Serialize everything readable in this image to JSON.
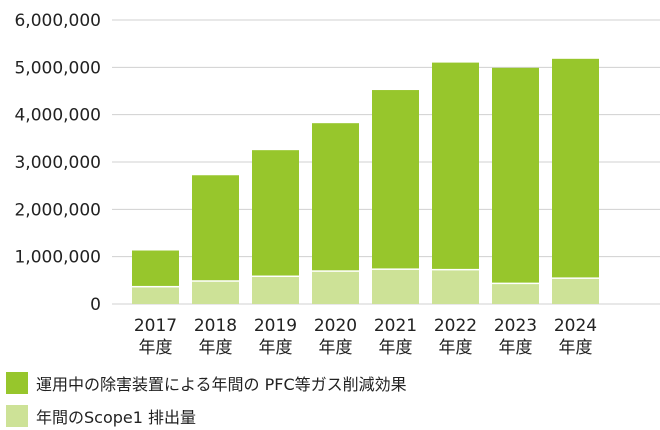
{
  "chart_data": {
    "type": "bar",
    "stacked": true,
    "categories": [
      "2017\n年度",
      "2018\n年度",
      "2019\n年度",
      "2020\n年度",
      "2021\n年度",
      "2022\n年度",
      "2023\n年度",
      "2024\n年度"
    ],
    "series": [
      {
        "name": "年間のScope1 排出量",
        "color": "#cde297",
        "values": [
          350000,
          470000,
          570000,
          680000,
          720000,
          710000,
          420000,
          530000
        ]
      },
      {
        "name": "運用中の除害装置による年間の PFC等ガス削減効果",
        "color": "#97c62c",
        "values": [
          780000,
          2250000,
          2680000,
          3140000,
          3800000,
          4390000,
          4570000,
          4650000
        ]
      }
    ],
    "yticks": [
      "0",
      "1,000,000",
      "2,000,000",
      "3,000,000",
      "4,000,000",
      "5,000,000",
      "6,000,000"
    ],
    "ylim": [
      0,
      6000000
    ],
    "grid": true,
    "legend_position": "bottom-left"
  }
}
